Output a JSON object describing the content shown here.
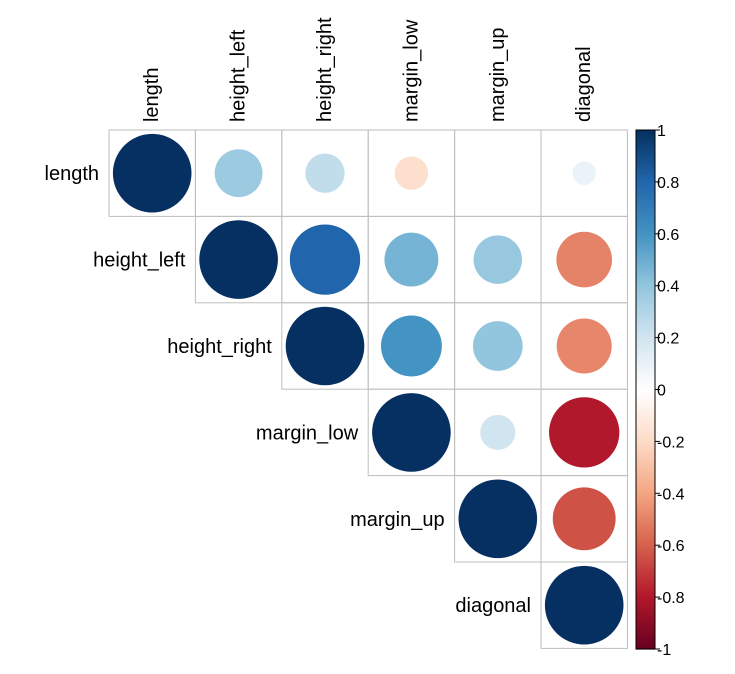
{
  "chart_data": {
    "type": "heatmap",
    "subtype": "correlation-matrix-upper",
    "variables": [
      "length",
      "height_left",
      "height_right",
      "margin_low",
      "margin_up",
      "diagonal"
    ],
    "values": [
      [
        1.0,
        0.37,
        0.25,
        -0.18,
        0.01,
        0.09
      ],
      [
        0.37,
        1.0,
        0.8,
        0.47,
        0.38,
        -0.5
      ],
      [
        0.25,
        0.8,
        1.0,
        0.6,
        0.4,
        -0.49
      ],
      [
        -0.18,
        0.47,
        0.6,
        1.0,
        0.2,
        -0.8
      ],
      [
        0.01,
        0.38,
        0.4,
        0.2,
        1.0,
        -0.64
      ],
      [
        0.09,
        -0.5,
        -0.49,
        -0.8,
        -0.64,
        1.0
      ]
    ],
    "shown": "upper",
    "glyph": "circle",
    "colorbar": {
      "range": [
        -1,
        1
      ],
      "ticks": [
        "1",
        "0.8",
        "0.6",
        "0.4",
        "0.2",
        "0",
        "-0.2",
        "-0.4",
        "-0.6",
        "-0.8",
        "-1"
      ],
      "palette": [
        "#67001F",
        "#B2182B",
        "#D6604D",
        "#F4A582",
        "#FDDBC7",
        "#FFFFFF",
        "#D1E5F0",
        "#92C5DE",
        "#4393C3",
        "#2166AC",
        "#053061"
      ]
    },
    "grid_color": "#BEBEBE"
  }
}
